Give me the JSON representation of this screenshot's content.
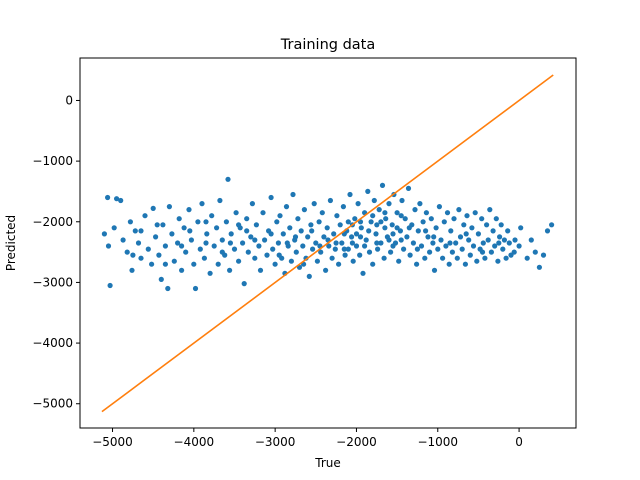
{
  "chart_data": {
    "type": "scatter",
    "title": "Training data",
    "xlabel": "True",
    "ylabel": "Predicted",
    "xlim": [
      -5400,
      700
    ],
    "ylim": [
      -5400,
      700
    ],
    "xticks": [
      -5000,
      -4000,
      -3000,
      -2000,
      -1000,
      0
    ],
    "yticks": [
      -5000,
      -4000,
      -3000,
      -2000,
      -1000,
      0
    ],
    "xtick_labels": [
      "−5000",
      "−4000",
      "−3000",
      "−2000",
      "−1000",
      "0"
    ],
    "ytick_labels": [
      "−5000",
      "−4000",
      "−3000",
      "−2000",
      "−1000",
      "0"
    ],
    "grid": false,
    "legend": "none",
    "scatter_color": "#1f77b4",
    "line_color": "#ff7f0e",
    "reference_line": {
      "x": [
        -5130,
        420
      ],
      "y": [
        -5130,
        420
      ]
    },
    "scatter_points": [
      [
        -5100,
        -2200
      ],
      [
        -5050,
        -2400
      ],
      [
        -4980,
        -2100
      ],
      [
        -5030,
        -3050
      ],
      [
        -4950,
        -1620
      ],
      [
        -4900,
        -1650
      ],
      [
        -5060,
        -1600
      ],
      [
        -4870,
        -2300
      ],
      [
        -4820,
        -2500
      ],
      [
        -4780,
        -2000
      ],
      [
        -4760,
        -2800
      ],
      [
        -4720,
        -2150
      ],
      [
        -4680,
        -2350
      ],
      [
        -4650,
        -2600
      ],
      [
        -4600,
        -1900
      ],
      [
        -4560,
        -2450
      ],
      [
        -4520,
        -2700
      ],
      [
        -4500,
        -1780
      ],
      [
        -4470,
        -2250
      ],
      [
        -4430,
        -2550
      ],
      [
        -4400,
        -2950
      ],
      [
        -4380,
        -2050
      ],
      [
        -4350,
        -2400
      ],
      [
        -4320,
        -3100
      ],
      [
        -4300,
        -1750
      ],
      [
        -4270,
        -2200
      ],
      [
        -4240,
        -2650
      ],
      [
        -4200,
        -2350
      ],
      [
        -4180,
        -1950
      ],
      [
        -4150,
        -2800
      ],
      [
        -4120,
        -2100
      ],
      [
        -4100,
        -2500
      ],
      [
        -4060,
        -1800
      ],
      [
        -4030,
        -2300
      ],
      [
        -4000,
        -2700
      ],
      [
        -3980,
        -3100
      ],
      [
        -3950,
        -2000
      ],
      [
        -3920,
        -2450
      ],
      [
        -3900,
        -1700
      ],
      [
        -3870,
        -2600
      ],
      [
        -3840,
        -2200
      ],
      [
        -3800,
        -2850
      ],
      [
        -3780,
        -1900
      ],
      [
        -3750,
        -2400
      ],
      [
        -3720,
        -2100
      ],
      [
        -3700,
        -2700
      ],
      [
        -3680,
        -1650
      ],
      [
        -3650,
        -2300
      ],
      [
        -3620,
        -2550
      ],
      [
        -3600,
        -2000
      ],
      [
        -3580,
        -1300
      ],
      [
        -3560,
        -2800
      ],
      [
        -3540,
        -2200
      ],
      [
        -3500,
        -2450
      ],
      [
        -3480,
        -1850
      ],
      [
        -3450,
        -2650
      ],
      [
        -3430,
        -2100
      ],
      [
        -3400,
        -2350
      ],
      [
        -3380,
        -3020
      ],
      [
        -3350,
        -1950
      ],
      [
        -3330,
        -2500
      ],
      [
        -3300,
        -2250
      ],
      [
        -3280,
        -1700
      ],
      [
        -3250,
        -2600
      ],
      [
        -3230,
        -2050
      ],
      [
        -3200,
        -2400
      ],
      [
        -3180,
        -2800
      ],
      [
        -3150,
        -1850
      ],
      [
        -3130,
        -2300
      ],
      [
        -3100,
        -2550
      ],
      [
        -3080,
        -2150
      ],
      [
        -3050,
        -1600
      ],
      [
        -3030,
        -2450
      ],
      [
        -3000,
        -2700
      ],
      [
        -2980,
        -2000
      ],
      [
        -2960,
        -2350
      ],
      [
        -2940,
        -1900
      ],
      [
        -2920,
        -2600
      ],
      [
        -2900,
        -2200
      ],
      [
        -2880,
        -2850
      ],
      [
        -2860,
        -1750
      ],
      [
        -2840,
        -2400
      ],
      [
        -2820,
        -2100
      ],
      [
        -2800,
        -2650
      ],
      [
        -2780,
        -1550
      ],
      [
        -2760,
        -2300
      ],
      [
        -2740,
        -2500
      ],
      [
        -2720,
        -1950
      ],
      [
        -2700,
        -2750
      ],
      [
        -2680,
        -2150
      ],
      [
        -2660,
        -2400
      ],
      [
        -2640,
        -1800
      ],
      [
        -2620,
        -2600
      ],
      [
        -2600,
        -2250
      ],
      [
        -2580,
        -2900
      ],
      [
        -2560,
        -2050
      ],
      [
        -2540,
        -2450
      ],
      [
        -2520,
        -1700
      ],
      [
        -2500,
        -2350
      ],
      [
        -2480,
        -2650
      ],
      [
        -2460,
        -2000
      ],
      [
        -2440,
        -2500
      ],
      [
        -2420,
        -1850
      ],
      [
        -2400,
        -2250
      ],
      [
        -2380,
        -2800
      ],
      [
        -2360,
        -2100
      ],
      [
        -2340,
        -2400
      ],
      [
        -2320,
        -1650
      ],
      [
        -2300,
        -2600
      ],
      [
        -2280,
        -2200
      ],
      [
        -2260,
        -2450
      ],
      [
        -2240,
        -1900
      ],
      [
        -2220,
        -2700
      ],
      [
        -2200,
        -2050
      ],
      [
        -2180,
        -2350
      ],
      [
        -2160,
        -1750
      ],
      [
        -2140,
        -2550
      ],
      [
        -2120,
        -2150
      ],
      [
        -2100,
        -2450
      ],
      [
        -2080,
        -1550
      ],
      [
        -2060,
        -2250
      ],
      [
        -2040,
        -2650
      ],
      [
        -2020,
        -1950
      ],
      [
        -2000,
        -2400
      ],
      [
        -1980,
        -1700
      ],
      [
        -1960,
        -2550
      ],
      [
        -1940,
        -2100
      ],
      [
        -1920,
        -2850
      ],
      [
        -1900,
        -1850
      ],
      [
        -1880,
        -2300
      ],
      [
        -1860,
        -1500
      ],
      [
        -1840,
        -2500
      ],
      [
        -1820,
        -2000
      ],
      [
        -1800,
        -2700
      ],
      [
        -1780,
        -1650
      ],
      [
        -1760,
        -2200
      ],
      [
        -1740,
        -2450
      ],
      [
        -1720,
        -1800
      ],
      [
        -1700,
        -2350
      ],
      [
        -1680,
        -1400
      ],
      [
        -1660,
        -2600
      ],
      [
        -1640,
        -1950
      ],
      [
        -1620,
        -2250
      ],
      [
        -1600,
        -1700
      ],
      [
        -1580,
        -2500
      ],
      [
        -1560,
        -2050
      ],
      [
        -1540,
        -1550
      ],
      [
        -1520,
        -2350
      ],
      [
        -1500,
        -1850
      ],
      [
        -1480,
        -2650
      ],
      [
        -1460,
        -2150
      ],
      [
        -1440,
        -1650
      ],
      [
        -1420,
        -2450
      ],
      [
        -1400,
        -1950
      ],
      [
        -1380,
        -2250
      ],
      [
        -1360,
        -1450
      ],
      [
        -1340,
        -2550
      ],
      [
        -1320,
        -2050
      ],
      [
        -1300,
        -2350
      ],
      [
        -1280,
        -1800
      ],
      [
        -1260,
        -2700
      ],
      [
        -1240,
        -2150
      ],
      [
        -1220,
        -1700
      ],
      [
        -1200,
        -2400
      ],
      [
        -1180,
        -2000
      ],
      [
        -1160,
        -2600
      ],
      [
        -1140,
        -1850
      ],
      [
        -1120,
        -2250
      ],
      [
        -1100,
        -2500
      ],
      [
        -1080,
        -1950
      ],
      [
        -1060,
        -2350
      ],
      [
        -1040,
        -2800
      ],
      [
        -1020,
        -2100
      ],
      [
        -1000,
        -2450
      ],
      [
        -980,
        -1750
      ],
      [
        -960,
        -2300
      ],
      [
        -940,
        -2600
      ],
      [
        -920,
        -2000
      ],
      [
        -900,
        -2400
      ],
      [
        -880,
        -1850
      ],
      [
        -860,
        -2700
      ],
      [
        -840,
        -2150
      ],
      [
        -820,
        -2500
      ],
      [
        -800,
        -1950
      ],
      [
        -780,
        -2350
      ],
      [
        -760,
        -2600
      ],
      [
        -740,
        -1800
      ],
      [
        -720,
        -2250
      ],
      [
        -700,
        -2450
      ],
      [
        -680,
        -2050
      ],
      [
        -660,
        -2700
      ],
      [
        -640,
        -1900
      ],
      [
        -620,
        -2300
      ],
      [
        -600,
        -2550
      ],
      [
        -580,
        -2100
      ],
      [
        -560,
        -2400
      ],
      [
        -540,
        -1850
      ],
      [
        -520,
        -2650
      ],
      [
        -500,
        -2200
      ],
      [
        -480,
        -2450
      ],
      [
        -460,
        -1950
      ],
      [
        -440,
        -2350
      ],
      [
        -420,
        -2600
      ],
      [
        -400,
        -2050
      ],
      [
        -380,
        -2300
      ],
      [
        -360,
        -1800
      ],
      [
        -340,
        -2500
      ],
      [
        -320,
        -2150
      ],
      [
        -300,
        -2400
      ],
      [
        -280,
        -1950
      ],
      [
        -260,
        -2650
      ],
      [
        -240,
        -2250
      ],
      [
        -220,
        -2050
      ],
      [
        -200,
        -2450
      ],
      [
        -180,
        -2300
      ],
      [
        -160,
        -2600
      ],
      [
        -140,
        -2150
      ],
      [
        -120,
        -2350
      ],
      [
        -100,
        -2550
      ],
      [
        -60,
        -2500
      ],
      [
        0,
        -2400
      ],
      [
        20,
        -2100
      ],
      [
        100,
        -2600
      ],
      [
        150,
        -2300
      ],
      [
        200,
        -2500
      ],
      [
        250,
        -2750
      ],
      [
        300,
        -2550
      ],
      [
        350,
        -2150
      ],
      [
        400,
        -2050
      ],
      [
        -3850,
        -2350
      ],
      [
        -3350,
        -2150
      ],
      [
        -2950,
        -2550
      ],
      [
        -2750,
        -2250
      ],
      [
        -2550,
        -2150
      ],
      [
        -2350,
        -2300
      ],
      [
        -2150,
        -2200
      ],
      [
        -1950,
        -2250
      ],
      [
        -1750,
        -2050
      ],
      [
        -1550,
        -2200
      ],
      [
        -1350,
        -2100
      ],
      [
        -1150,
        -2150
      ],
      [
        -2050,
        -2050
      ],
      [
        -1850,
        -2150
      ],
      [
        -1650,
        -2100
      ],
      [
        -1450,
        -2300
      ],
      [
        -2250,
        -2350
      ],
      [
        -2450,
        -2400
      ],
      [
        -1800,
        -1900
      ],
      [
        -1700,
        -2000
      ],
      [
        -1600,
        -2300
      ],
      [
        -1500,
        -2100
      ],
      [
        -1900,
        -2400
      ],
      [
        -2000,
        -2200
      ],
      [
        -2100,
        -2000
      ],
      [
        -1750,
        -2350
      ],
      [
        -1650,
        -1850
      ],
      [
        -1550,
        -2400
      ],
      [
        -1450,
        -1900
      ],
      [
        -1950,
        -2000
      ],
      [
        -2050,
        -2350
      ],
      [
        -2150,
        -2450
      ],
      [
        -4750,
        -2550
      ],
      [
        -4650,
        -2150
      ],
      [
        -4450,
        -2050
      ],
      [
        -4350,
        -2700
      ],
      [
        -4150,
        -2400
      ],
      [
        -4050,
        -2150
      ],
      [
        -3850,
        -2000
      ],
      [
        -3650,
        -2500
      ],
      [
        -3550,
        -2350
      ],
      [
        -3450,
        -2050
      ],
      [
        -3250,
        -2300
      ],
      [
        -3050,
        -2200
      ],
      [
        -2850,
        -2350
      ],
      [
        -2650,
        -2700
      ],
      [
        -1250,
        -2450
      ],
      [
        -1050,
        -2250
      ],
      [
        -850,
        -2350
      ],
      [
        -650,
        -2200
      ],
      [
        -450,
        -2500
      ],
      [
        -250,
        -2350
      ],
      [
        -50,
        -2300
      ]
    ]
  }
}
